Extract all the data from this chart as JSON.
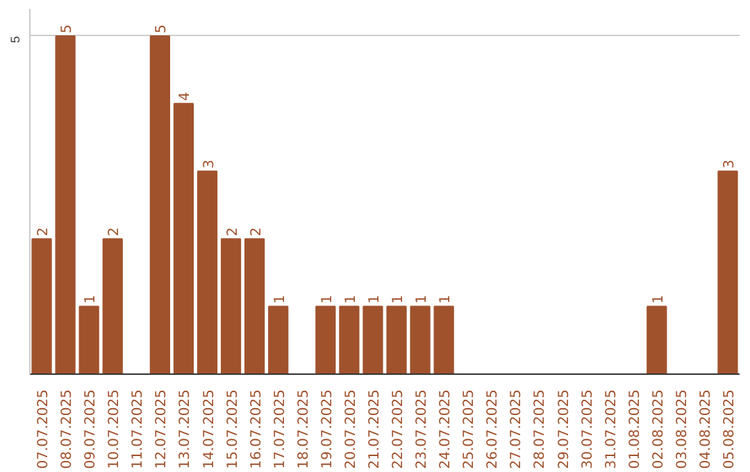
{
  "chart_data": {
    "type": "bar",
    "categories": [
      "07.07.2025",
      "08.07.2025",
      "09.07.2025",
      "10.07.2025",
      "11.07.2025",
      "12.07.2025",
      "13.07.2025",
      "14.07.2025",
      "15.07.2025",
      "16.07.2025",
      "17.07.2025",
      "18.07.2025",
      "19.07.2025",
      "20.07.2025",
      "21.07.2025",
      "22.07.2025",
      "23.07.2025",
      "24.07.2025",
      "25.07.2025",
      "26.07.2025",
      "27.07.2025",
      "28.07.2025",
      "29.07.2025",
      "30.07.2025",
      "31.07.2025",
      "01.08.2025",
      "02.08.2025",
      "03.08.2025",
      "04.08.2025",
      "05.08.2025"
    ],
    "values": [
      2,
      5,
      1,
      2,
      0,
      5,
      4,
      3,
      2,
      2,
      1,
      0,
      1,
      1,
      1,
      1,
      1,
      1,
      0,
      0,
      0,
      0,
      0,
      0,
      0,
      0,
      1,
      0,
      0,
      3
    ],
    "value_labels": [
      "2",
      "5",
      "1",
      "2",
      null,
      "5",
      "4",
      "3",
      "2",
      "2",
      "1",
      null,
      "1",
      "1",
      "1",
      "1",
      "1",
      "1",
      null,
      null,
      null,
      null,
      null,
      null,
      null,
      null,
      "1",
      null,
      null,
      "3"
    ],
    "color": "#a0522d",
    "ylim": [
      0,
      5.4
    ],
    "yticks": [
      5
    ],
    "grid": "y"
  }
}
